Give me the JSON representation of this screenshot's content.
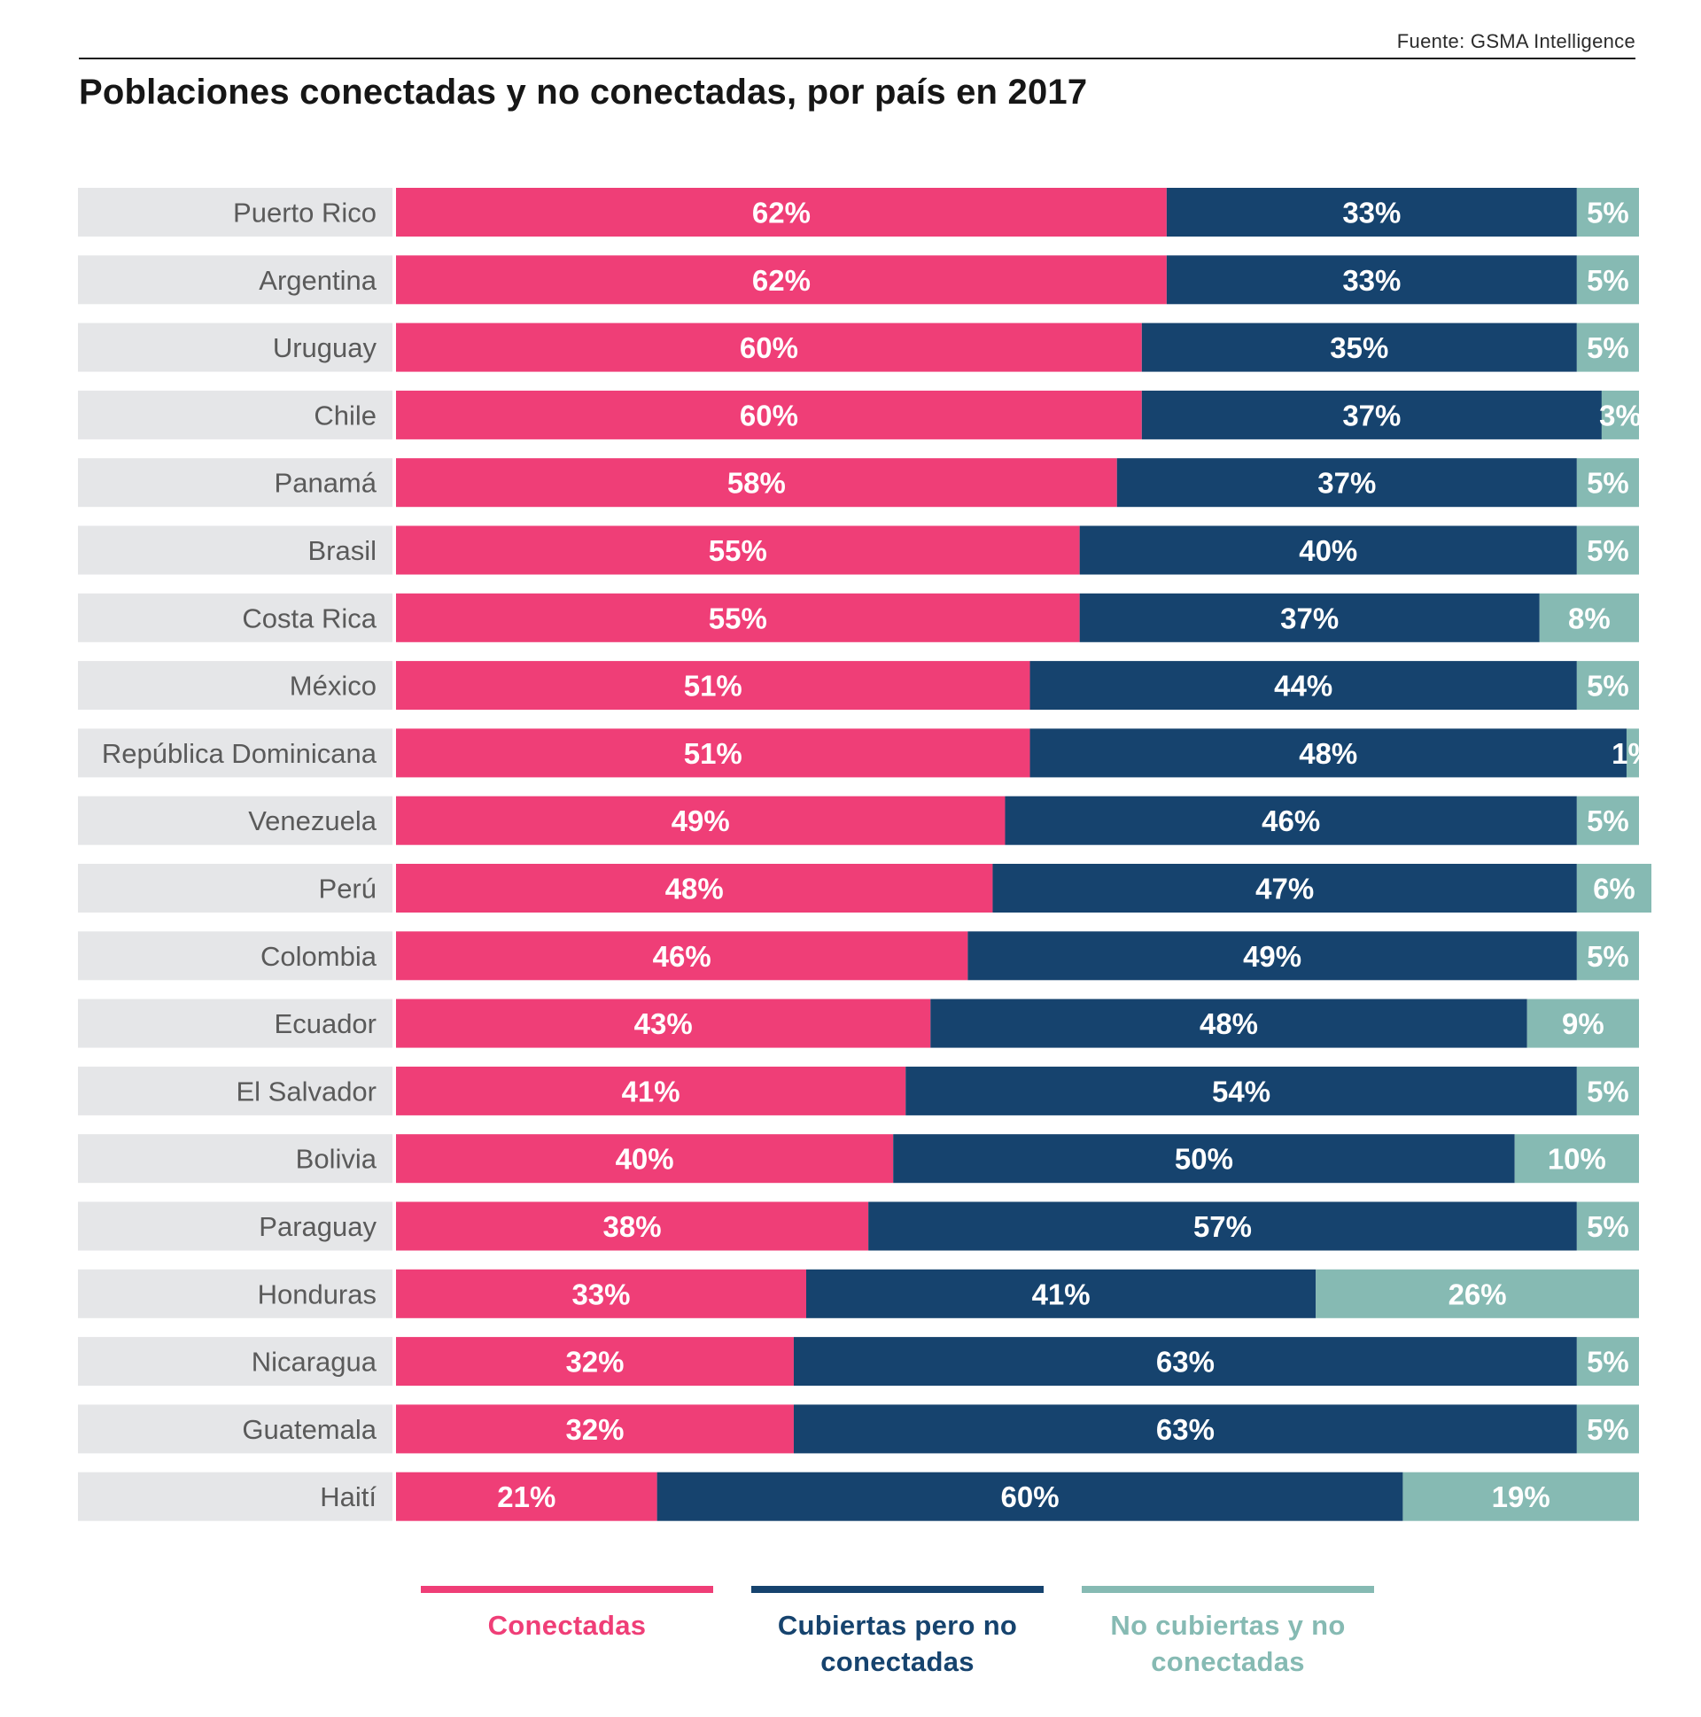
{
  "header": {
    "source": "Fuente: GSMA Intelligence",
    "title": "Poblaciones conectadas y no conectadas, por país en 2017"
  },
  "colors": {
    "connected": "#ef3e77",
    "covered_not_connected": "#16436e",
    "not_covered": "#86bab3",
    "label_bg": "#e5e6e8",
    "label_text": "#5a5a5a"
  },
  "chart_data": {
    "type": "bar",
    "orientation": "horizontal",
    "stacked": true,
    "categories": [
      "Puerto Rico",
      "Argentina",
      "Uruguay",
      "Chile",
      "Panamá",
      "Brasil",
      "Costa Rica",
      "México",
      "República Dominicana",
      "Venezuela",
      "Perú",
      "Colombia",
      "Ecuador",
      "El Salvador",
      "Bolivia",
      "Paraguay",
      "Honduras",
      "Nicaragua",
      "Guatemala",
      "Haití"
    ],
    "series": [
      {
        "name": "Conectadas",
        "color": "#ef3e77",
        "values": [
          62,
          62,
          60,
          60,
          58,
          55,
          55,
          51,
          51,
          49,
          48,
          46,
          43,
          41,
          40,
          38,
          33,
          32,
          32,
          21
        ]
      },
      {
        "name": "Cubiertas pero no conectadas",
        "color": "#16436e",
        "values": [
          33,
          33,
          35,
          37,
          37,
          40,
          37,
          44,
          48,
          46,
          47,
          49,
          48,
          54,
          50,
          57,
          41,
          63,
          63,
          60
        ]
      },
      {
        "name": "No cubiertas y no conectadas",
        "color": "#86bab3",
        "values": [
          5,
          5,
          5,
          3,
          5,
          5,
          8,
          5,
          1,
          5,
          6,
          5,
          9,
          5,
          10,
          5,
          26,
          5,
          5,
          19
        ]
      }
    ],
    "value_suffix": "%",
    "xlim": [
      0,
      100
    ],
    "legend": "bottom",
    "grid": false
  },
  "legend": {
    "items": [
      {
        "line1": "Conectadas",
        "line2": "",
        "color": "#ef3e77"
      },
      {
        "line1": "Cubiertas pero no",
        "line2": "conectadas",
        "color": "#16436e"
      },
      {
        "line1": "No cubiertas y no",
        "line2": "conectadas",
        "color": "#86bab3"
      }
    ]
  }
}
